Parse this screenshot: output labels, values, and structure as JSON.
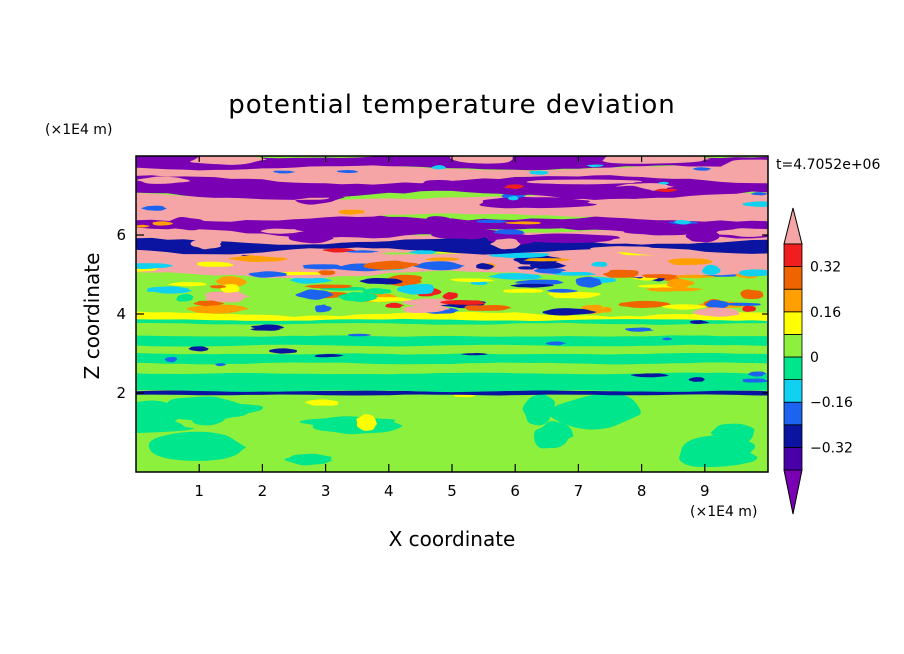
{
  "chart_data": {
    "type": "heatmap",
    "title": "potential temperature deviation",
    "time_label": "t=4.7052e+06",
    "xlabel": "X coordinate",
    "ylabel": "Z coordinate",
    "x_unit": "(×1E4 m)",
    "y_unit": "(×1E4 m)",
    "xlim": [
      0,
      10
    ],
    "ylim": [
      0,
      8
    ],
    "x_ticks": [
      1,
      2,
      3,
      4,
      5,
      6,
      7,
      8,
      9
    ],
    "y_ticks": [
      2,
      4,
      6
    ],
    "colorbar": {
      "levels": [
        -0.4,
        -0.32,
        -0.24,
        -0.16,
        -0.08,
        0,
        0.08,
        0.16,
        0.24,
        0.32,
        0.4
      ],
      "labeled_levels": [
        -0.32,
        -0.16,
        0,
        0.16,
        0.32
      ],
      "tick_labels": [
        "−0.32",
        "−0.16",
        "0",
        "0.16",
        "0.32"
      ],
      "colors": [
        "#7a00b4",
        "#4a00a8",
        "#0a14a0",
        "#1c64f0",
        "#10d2f0",
        "#00e68c",
        "#8cf03c",
        "#ffff00",
        "#ffa000",
        "#f06400",
        "#f01e1e",
        "#f5a5a5"
      ],
      "extend": "both"
    },
    "regions": [
      {
        "z_range": [
          7.0,
          8.0
        ],
        "dominant": [
          "#f5a5a5",
          "#7a00b4"
        ],
        "note_level": "high magnitude alternating"
      },
      {
        "z_range": [
          5.0,
          7.0
        ],
        "dominant": [
          "#f5a5a5",
          "#7a00b4",
          "#0a14a0",
          "#10d2f0"
        ]
      },
      {
        "z_range": [
          4.0,
          5.0
        ],
        "dominant": [
          "#f06400",
          "#ffff00",
          "#8cf03c",
          "#1c64f0"
        ]
      },
      {
        "z_range": [
          2.0,
          4.0
        ],
        "dominant": [
          "#00e68c",
          "#8cf03c"
        ]
      },
      {
        "z_range": [
          0.0,
          2.0
        ],
        "dominant": [
          "#8cf03c",
          "#00e68c"
        ]
      }
    ]
  }
}
